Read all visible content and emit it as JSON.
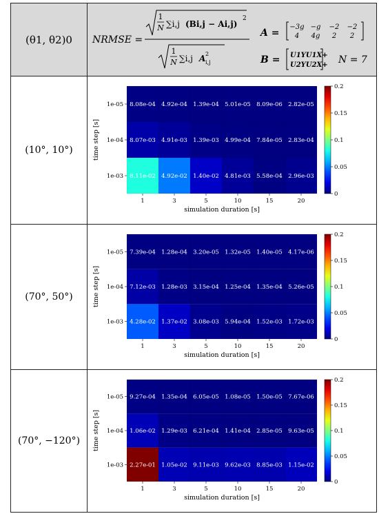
{
  "header": {
    "col1": "(θ1, θ2)0",
    "formula": {
      "lhs": "NRMSE =",
      "num_frac_top": "1",
      "num_frac_bottom": "N",
      "num_sum": "∑i,j",
      "num_body": "(Bi,j − Ai,j)",
      "num_exp": "2",
      "den_frac_top": "1",
      "den_frac_bottom": "N",
      "den_sum": "∑i,j",
      "den_body": "A",
      "den_sub": "i,j",
      "den_exp": "2",
      "A_label": "A =",
      "A_r1": [
        "−3g",
        "−g",
        "−2",
        "−2"
      ],
      "A_r2": [
        "4",
        "4g",
        "2",
        "2"
      ],
      "B_label": "B =",
      "B_r1": "U1YU1X+",
      "B_r2": "U2YU2X+",
      "N_label": "N = 7"
    }
  },
  "rows": [
    {
      "label": "(10°, 10°)"
    },
    {
      "label": "(70°, 50°)"
    },
    {
      "label": "(70°, −120°)"
    }
  ],
  "chart_data": [
    {
      "type": "heatmap",
      "initial_condition": "(10°, 10°)",
      "xlabel": "simulation duration [s]",
      "ylabel": "time step [s]",
      "x": [
        "1",
        "3",
        "5",
        "10",
        "15",
        "20"
      ],
      "y": [
        "1e-05",
        "1e-04",
        "1e-03"
      ],
      "values": [
        [
          0.000808,
          0.000492,
          0.000139,
          5.01e-05,
          8.09e-06,
          2.82e-05
        ],
        [
          0.00807,
          0.00491,
          0.00139,
          0.000499,
          7.84e-05,
          0.000283
        ],
        [
          0.0811,
          0.0492,
          0.014,
          0.00481,
          0.000558,
          0.00296
        ]
      ],
      "labels": [
        [
          "8.08e-04",
          "4.92e-04",
          "1.39e-04",
          "5.01e-05",
          "8.09e-06",
          "2.82e-05"
        ],
        [
          "8.07e-03",
          "4.91e-03",
          "1.39e-03",
          "4.99e-04",
          "7.84e-05",
          "2.83e-04"
        ],
        [
          "8.11e-02",
          "4.92e-02",
          "1.40e-02",
          "4.81e-03",
          "5.58e-04",
          "2.96e-03"
        ]
      ],
      "colorbar": {
        "range": [
          0,
          0.2
        ],
        "ticks": [
          "0",
          "0.05",
          "0.1",
          "0.15",
          "0.2"
        ],
        "colormap": "jet"
      }
    },
    {
      "type": "heatmap",
      "initial_condition": "(70°, 50°)",
      "xlabel": "simulation duration [s]",
      "ylabel": "time step [s]",
      "x": [
        "1",
        "3",
        "5",
        "10",
        "15",
        "20"
      ],
      "y": [
        "1e-05",
        "1e-04",
        "1e-03"
      ],
      "values": [
        [
          0.000739,
          0.000128,
          3.2e-05,
          1.32e-05,
          1.4e-05,
          4.17e-06
        ],
        [
          0.00712,
          0.00128,
          0.000315,
          0.000125,
          0.000135,
          5.26e-05
        ],
        [
          0.0428,
          0.0137,
          0.00308,
          0.000594,
          0.00152,
          0.00172
        ]
      ],
      "labels": [
        [
          "7.39e-04",
          "1.28e-04",
          "3.20e-05",
          "1.32e-05",
          "1.40e-05",
          "4.17e-06"
        ],
        [
          "7.12e-03",
          "1.28e-03",
          "3.15e-04",
          "1.25e-04",
          "1.35e-04",
          "5.26e-05"
        ],
        [
          "4.28e-02",
          "1.37e-02",
          "3.08e-03",
          "5.94e-04",
          "1.52e-03",
          "1.72e-03"
        ]
      ],
      "colorbar": {
        "range": [
          0,
          0.2
        ],
        "ticks": [
          "0",
          "0.05",
          "0.1",
          "0.15",
          "0.2"
        ],
        "colormap": "jet"
      }
    },
    {
      "type": "heatmap",
      "initial_condition": "(70°, −120°)",
      "xlabel": "simulation duration [s]",
      "ylabel": "time step [s]",
      "x": [
        "1",
        "3",
        "5",
        "10",
        "15",
        "20"
      ],
      "y": [
        "1e-05",
        "1e-04",
        "1e-03"
      ],
      "values": [
        [
          0.000927,
          0.000135,
          6.05e-05,
          1.08e-05,
          1.5e-05,
          7.67e-06
        ],
        [
          0.0106,
          0.00129,
          0.000621,
          0.000141,
          2.85e-05,
          9.63e-05
        ],
        [
          0.227,
          0.0105,
          0.00911,
          0.00962,
          0.00885,
          0.0115
        ]
      ],
      "labels": [
        [
          "9.27e-04",
          "1.35e-04",
          "6.05e-05",
          "1.08e-05",
          "1.50e-05",
          "7.67e-06"
        ],
        [
          "1.06e-02",
          "1.29e-03",
          "6.21e-04",
          "1.41e-04",
          "2.85e-05",
          "9.63e-05"
        ],
        [
          "2.27e-01",
          "1.05e-02",
          "9.11e-03",
          "9.62e-03",
          "8.85e-03",
          "1.15e-02"
        ]
      ],
      "colorbar": {
        "range": [
          0,
          0.2
        ],
        "ticks": [
          "0",
          "0.05",
          "0.1",
          "0.15",
          "0.2"
        ],
        "colormap": "jet"
      }
    }
  ]
}
